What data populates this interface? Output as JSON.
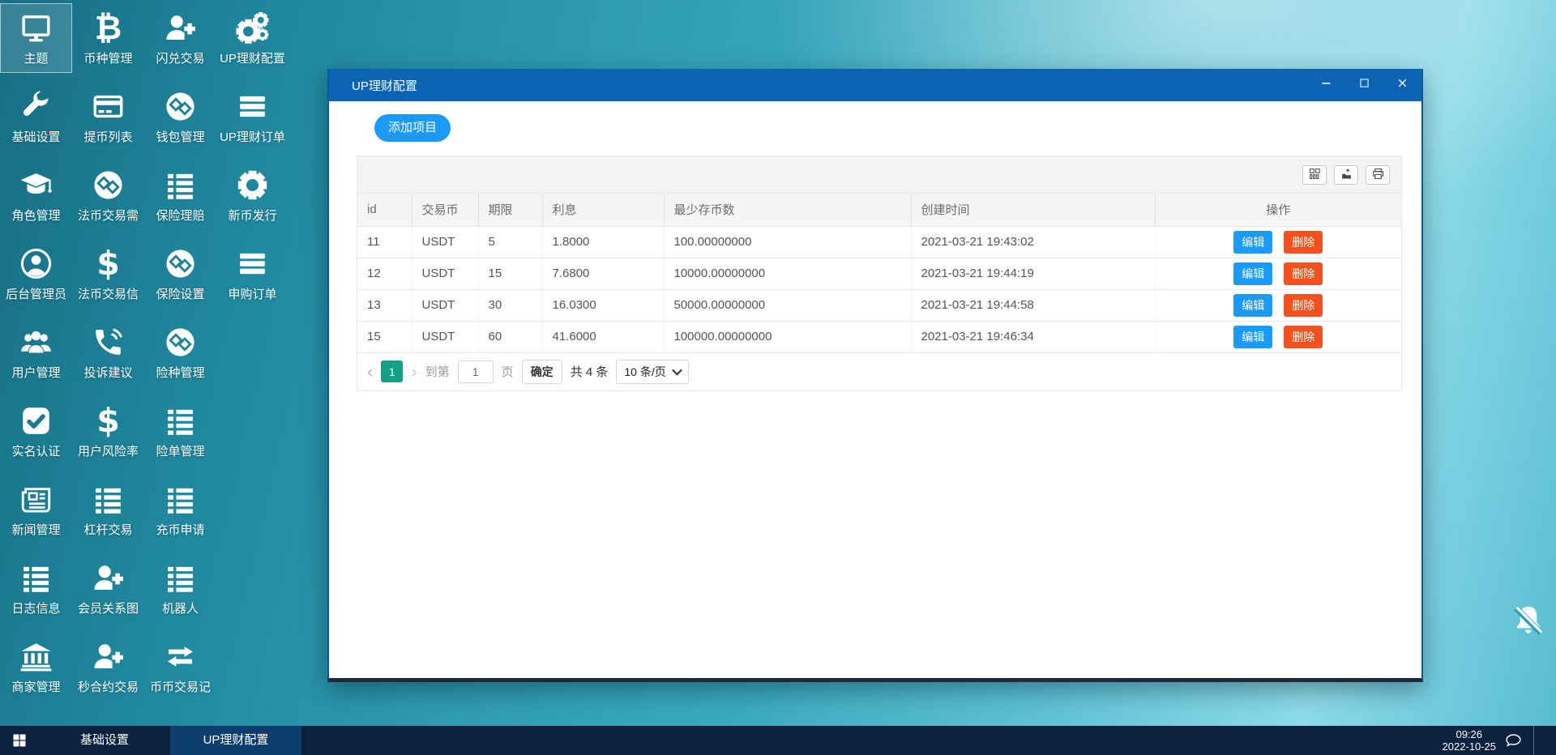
{
  "colors": {
    "titlebar": "#0a64b2",
    "accent": "#1a9bfc",
    "danger": "#f4511e",
    "page_active": "#13a185",
    "taskbar": "#0a2140",
    "taskbar_active": "#0e3e6e"
  },
  "desktop": {
    "columns": [
      [
        {
          "label": "主题",
          "icon": "monitor-icon",
          "selected": true
        },
        {
          "label": "基础设置",
          "icon": "wrench-icon"
        },
        {
          "label": "角色管理",
          "icon": "graduation-cap-icon"
        },
        {
          "label": "后台管理员",
          "icon": "user-circle-icon"
        },
        {
          "label": "用户管理",
          "icon": "users-icon"
        },
        {
          "label": "实名认证",
          "icon": "check-square-icon"
        },
        {
          "label": "新闻管理",
          "icon": "newspaper-icon"
        },
        {
          "label": "日志信息",
          "icon": "list-icon"
        },
        {
          "label": "商家管理",
          "icon": "bank-icon"
        }
      ],
      [
        {
          "label": "币种管理",
          "icon": "bitcoin-icon"
        },
        {
          "label": "提币列表",
          "icon": "credit-card-icon"
        },
        {
          "label": "法币交易需",
          "icon": "exchange-circle-icon"
        },
        {
          "label": "法币交易信",
          "icon": "dollar-icon"
        },
        {
          "label": "投诉建议",
          "icon": "phone-icon"
        },
        {
          "label": "用户风险率",
          "icon": "dollar-icon"
        },
        {
          "label": "杠杆交易",
          "icon": "list-icon"
        },
        {
          "label": "会员关系图",
          "icon": "user-plus-icon"
        },
        {
          "label": "秒合约交易",
          "icon": "user-plus-icon"
        }
      ],
      [
        {
          "label": "闪兑交易",
          "icon": "user-plus-icon"
        },
        {
          "label": "钱包管理",
          "icon": "exchange-circle-icon"
        },
        {
          "label": "保险理赔",
          "icon": "list-icon"
        },
        {
          "label": "保险设置",
          "icon": "exchange-circle-icon"
        },
        {
          "label": "险种管理",
          "icon": "exchange-circle-icon"
        },
        {
          "label": "险单管理",
          "icon": "list-icon"
        },
        {
          "label": "充币申请",
          "icon": "list-icon"
        },
        {
          "label": "机器人",
          "icon": "list-icon"
        },
        {
          "label": "币币交易记",
          "icon": "exchange-arrows-icon"
        }
      ],
      [
        {
          "label": "UP理财配置",
          "icon": "gears-icon"
        },
        {
          "label": "UP理财订单",
          "icon": "bars-icon"
        },
        {
          "label": "新币发行",
          "icon": "gear-icon"
        },
        {
          "label": "申购订单",
          "icon": "bars-icon"
        }
      ]
    ],
    "tray_icon": "bell-muted-icon"
  },
  "window": {
    "title": "UP理财配置",
    "controls": [
      "minimize-icon",
      "maximize-icon",
      "close-icon"
    ],
    "add_button_label": "添加项目",
    "toolbar_buttons": [
      "table-columns-icon",
      "export-icon",
      "print-icon"
    ],
    "table": {
      "headers": [
        "id",
        "交易币",
        "期限",
        "利息",
        "最少存币数",
        "创建时间",
        "操作"
      ],
      "rows": [
        [
          "11",
          "USDT",
          "5",
          "1.8000",
          "100.00000000",
          "2021-03-21 19:43:02"
        ],
        [
          "12",
          "USDT",
          "15",
          "7.6800",
          "10000.00000000",
          "2021-03-21 19:44:19"
        ],
        [
          "13",
          "USDT",
          "30",
          "16.0300",
          "50000.00000000",
          "2021-03-21 19:44:58"
        ],
        [
          "15",
          "USDT",
          "60",
          "41.6000",
          "100000.00000000",
          "2021-03-21 19:46:34"
        ]
      ],
      "row_actions": [
        {
          "label": "编辑",
          "type": "edit"
        },
        {
          "label": "删除",
          "type": "delete"
        }
      ]
    },
    "pagination": {
      "prev": "‹",
      "page": "1",
      "next": "›",
      "goto_label": "到第",
      "goto_value": "1",
      "page_unit": "页",
      "confirm_label": "确定",
      "total_label": "共 4 条",
      "page_size_label": "10 条/页"
    }
  },
  "taskbar": {
    "start_icon": "windows-start-icon",
    "tasks": [
      {
        "label": "基础设置",
        "active": false
      },
      {
        "label": "UP理财配置",
        "active": true
      }
    ],
    "clock": {
      "time": "09:26",
      "date": "2022-10-25"
    },
    "chat_icon": "chat-bubble-icon"
  }
}
